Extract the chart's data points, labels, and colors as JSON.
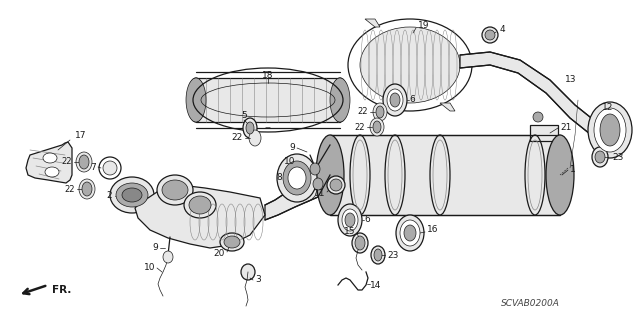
{
  "bg_color": "#ffffff",
  "fig_width": 6.4,
  "fig_height": 3.19,
  "dpi": 100,
  "diagram_code": "SCVAB0200A",
  "lc": "#1a1a1a",
  "lw_main": 0.9,
  "lw_thin": 0.5,
  "lw_thick": 1.4,
  "gray_fill": "#cccccc",
  "gray_mid": "#aaaaaa",
  "gray_dark": "#888888",
  "gray_light": "#e8e8e8",
  "white": "#ffffff"
}
